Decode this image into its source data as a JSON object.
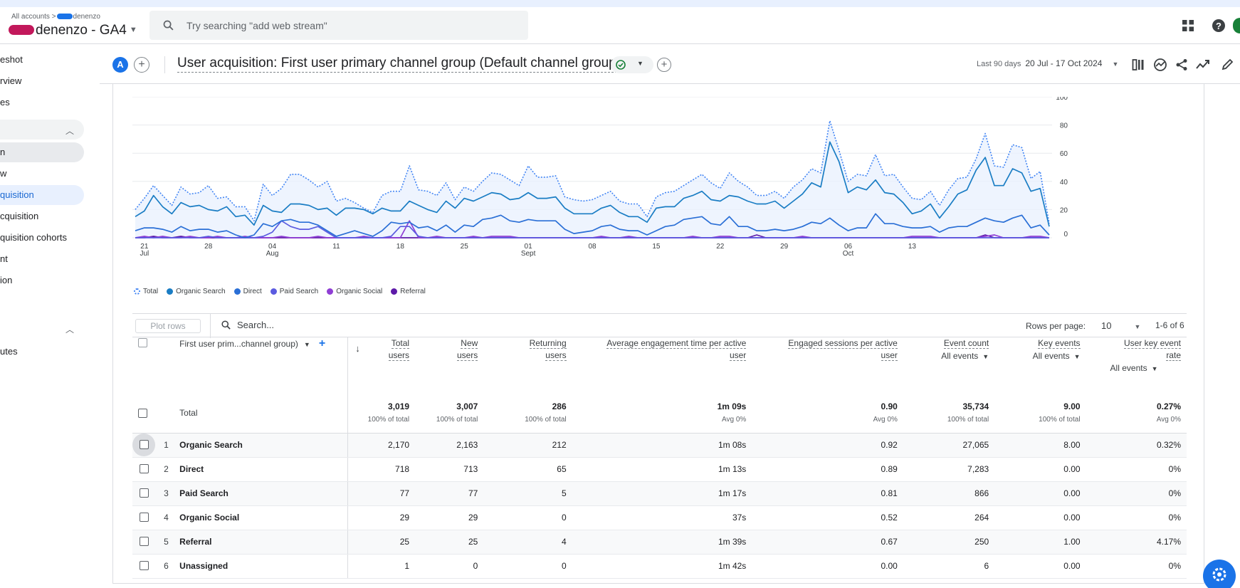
{
  "header": {
    "breadcrumb_prefix": "All accounts",
    "breadcrumb_sep": ">",
    "breadcrumb_account": "denenzo",
    "property_name": "denenzo - GA4",
    "search_placeholder": "Try searching \"add web stream\""
  },
  "sidebar": {
    "items": [
      {
        "label": "eshot"
      },
      {
        "label": "rview"
      },
      {
        "label": "es"
      },
      {
        "label": "n"
      },
      {
        "label": "w"
      },
      {
        "label": "quisition"
      },
      {
        "label": "cquisition"
      },
      {
        "label": "quisition cohorts"
      },
      {
        "label": "nt"
      },
      {
        "label": "ion"
      },
      {
        "label": "utes"
      }
    ]
  },
  "report": {
    "comparison_avatar": "A",
    "title": "User acquisition: First user primary channel group (Default channel group)",
    "date_label": "Last 90 days",
    "date_range": "20 Jul - 17 Oct 2024"
  },
  "chart_data": {
    "type": "line",
    "x_tick_labels": [
      "21",
      "28",
      "04",
      "11",
      "18",
      "25",
      "01",
      "08",
      "15",
      "22",
      "29",
      "06",
      "13"
    ],
    "x_month_labels": [
      {
        "tick": "21",
        "month": "Jul"
      },
      {
        "tick": "04",
        "month": "Aug"
      },
      {
        "tick": "01",
        "month": "Sept"
      },
      {
        "tick": "06",
        "month": "Oct"
      }
    ],
    "y_ticks": [
      0,
      20,
      40,
      60,
      80,
      100
    ],
    "ylim": [
      0,
      100
    ],
    "grid": true,
    "legend_position": "bottom-left",
    "series": [
      {
        "name": "Total",
        "style": "dotted",
        "color": "#4285f4",
        "values": [
          20,
          28,
          37,
          30,
          23,
          36,
          31,
          32,
          37,
          28,
          29,
          22,
          22,
          12,
          38,
          30,
          35,
          45,
          45,
          41,
          36,
          40,
          26,
          28,
          25,
          21,
          18,
          30,
          33,
          33,
          51,
          34,
          33,
          30,
          39,
          27,
          36,
          33,
          40,
          46,
          45,
          41,
          37,
          51,
          43,
          43,
          44,
          29,
          27,
          26,
          27,
          30,
          33,
          26,
          24,
          24,
          15,
          29,
          32,
          33,
          37,
          41,
          45,
          39,
          35,
          46,
          40,
          36,
          30,
          30,
          33,
          28,
          36,
          41,
          49,
          46,
          83,
          62,
          40,
          45,
          44,
          59,
          44,
          45,
          36,
          28,
          27,
          33,
          23,
          34,
          42,
          43,
          56,
          74,
          51,
          50,
          66,
          64,
          42,
          47,
          10
        ]
      },
      {
        "name": "Organic Search",
        "style": "solid",
        "color": "#1a7dc4",
        "values": [
          15,
          19,
          30,
          22,
          17,
          25,
          22,
          23,
          20,
          19,
          22,
          15,
          16,
          9,
          23,
          19,
          18,
          24,
          24,
          23,
          20,
          21,
          16,
          21,
          21,
          20,
          17,
          21,
          19,
          19,
          26,
          23,
          20,
          18,
          26,
          21,
          28,
          26,
          29,
          32,
          31,
          27,
          28,
          32,
          28,
          28,
          29,
          21,
          17,
          17,
          17,
          21,
          23,
          18,
          15,
          15,
          11,
          21,
          22,
          22,
          28,
          30,
          33,
          27,
          26,
          30,
          29,
          26,
          24,
          24,
          26,
          21,
          26,
          31,
          39,
          36,
          68,
          54,
          32,
          36,
          34,
          41,
          32,
          31,
          25,
          17,
          19,
          24,
          14,
          22,
          31,
          34,
          48,
          57,
          37,
          37,
          49,
          46,
          33,
          35,
          8
        ]
      },
      {
        "name": "Direct",
        "style": "solid",
        "color": "#2a6fd6",
        "values": [
          5,
          7,
          7,
          6,
          4,
          8,
          5,
          6,
          6,
          4,
          5,
          2,
          0,
          2,
          10,
          8,
          12,
          13,
          11,
          11,
          9,
          5,
          1,
          3,
          5,
          3,
          1,
          5,
          11,
          10,
          11,
          7,
          8,
          5,
          9,
          4,
          9,
          8,
          13,
          14,
          16,
          12,
          11,
          13,
          12,
          12,
          12,
          6,
          3,
          4,
          5,
          8,
          9,
          6,
          5,
          5,
          2,
          5,
          8,
          9,
          13,
          14,
          15,
          10,
          9,
          15,
          8,
          8,
          5,
          5,
          6,
          5,
          6,
          8,
          11,
          10,
          14,
          9,
          5,
          7,
          7,
          17,
          10,
          10,
          8,
          7,
          7,
          8,
          4,
          7,
          8,
          8,
          11,
          14,
          12,
          11,
          14,
          16,
          7,
          9,
          2
        ]
      },
      {
        "name": "Paid Search",
        "style": "solid",
        "color": "#5b5be0",
        "values": [
          0,
          0,
          0,
          0,
          0,
          0,
          0,
          0,
          1,
          0,
          0,
          0,
          0,
          0,
          1,
          4,
          12,
          8,
          6,
          6,
          8,
          4,
          0,
          0,
          0,
          0,
          0,
          0,
          1,
          8,
          8,
          1,
          0,
          0,
          0,
          0,
          0,
          0,
          0,
          0,
          0,
          0,
          0,
          0,
          0,
          0,
          0,
          0,
          0,
          0,
          0,
          0,
          0,
          0,
          0,
          0,
          0,
          0,
          0,
          0,
          0,
          0,
          0,
          0,
          0,
          0,
          0,
          0,
          0,
          0,
          0,
          0,
          0,
          0,
          0,
          0,
          0,
          0,
          0,
          0,
          0,
          0,
          0,
          0,
          0,
          0,
          0,
          0,
          0,
          0,
          0,
          0,
          0,
          0,
          0,
          0,
          0,
          0,
          0,
          0,
          0
        ]
      },
      {
        "name": "Organic Social",
        "style": "solid",
        "color": "#8f3ed4",
        "values": [
          0,
          1,
          0,
          1,
          0,
          0,
          1,
          0,
          0,
          1,
          0,
          0,
          1,
          0,
          0,
          0,
          1,
          0,
          0,
          0,
          1,
          0,
          0,
          0,
          0,
          1,
          0,
          0,
          0,
          0,
          12,
          0,
          0,
          1,
          0,
          0,
          0,
          1,
          0,
          1,
          1,
          1,
          0,
          0,
          0,
          0,
          0,
          0,
          0,
          0,
          0,
          1,
          0,
          0,
          1,
          0,
          0,
          0,
          0,
          0,
          0,
          1,
          0,
          0,
          1,
          1,
          0,
          0,
          0,
          0,
          0,
          0,
          0,
          1,
          0,
          0,
          0,
          0,
          0,
          0,
          0,
          0,
          0,
          0,
          0,
          1,
          1,
          1,
          0,
          0,
          0,
          0,
          0,
          1,
          2,
          0,
          0,
          0,
          1,
          1,
          0
        ]
      },
      {
        "name": "Referral",
        "style": "solid",
        "color": "#5d1aa8",
        "values": [
          0,
          0,
          1,
          0,
          0,
          1,
          0,
          0,
          0,
          0,
          0,
          0,
          0,
          0,
          0,
          0,
          0,
          0,
          0,
          0,
          0,
          0,
          0,
          0,
          0,
          0,
          0,
          0,
          0,
          0,
          0,
          0,
          0,
          0,
          0,
          0,
          0,
          0,
          0,
          0,
          0,
          0,
          0,
          0,
          0,
          0,
          0,
          0,
          0,
          0,
          0,
          0,
          0,
          0,
          0,
          0,
          0,
          0,
          0,
          0,
          0,
          0,
          0,
          0,
          0,
          0,
          0,
          0,
          2,
          0,
          0,
          0,
          0,
          0,
          0,
          0,
          0,
          0,
          0,
          0,
          0,
          0,
          0,
          0,
          0,
          0,
          0,
          0,
          0,
          0,
          0,
          0,
          0,
          2,
          0,
          0,
          0,
          0,
          0,
          0,
          0
        ]
      }
    ]
  },
  "toolbar": {
    "plot_rows": "Plot rows",
    "search_placeholder": "Search...",
    "rows_per_page_label": "Rows per page:",
    "rows_per_page_value": "10",
    "pagination": "1-6 of 6"
  },
  "table": {
    "dimension_header": "First user prim...channel group)",
    "columns": [
      {
        "l1": "Total",
        "l2": "users"
      },
      {
        "l1": "New",
        "l2": "users"
      },
      {
        "l1": "Returning",
        "l2": "users"
      },
      {
        "l1": "Average engagement time per active",
        "l2": "user"
      },
      {
        "l1": "Engaged sessions per active",
        "l2": "user"
      },
      {
        "l1": "Event count",
        "sub": "All events"
      },
      {
        "l1": "Key events",
        "sub": "All events"
      },
      {
        "l1": "User key event",
        "l2": "rate",
        "sub": "All events"
      }
    ],
    "totals": {
      "label": "Total",
      "values": [
        "3,019",
        "3,007",
        "286",
        "1m 09s",
        "0.90",
        "35,734",
        "9.00",
        "0.27%"
      ],
      "subs": [
        "100% of total",
        "100% of total",
        "100% of total",
        "Avg 0%",
        "Avg 0%",
        "100% of total",
        "100% of total",
        "Avg 0%"
      ]
    },
    "rows": [
      {
        "idx": "1",
        "name": "Organic Search",
        "v": [
          "2,170",
          "2,163",
          "212",
          "1m 08s",
          "0.92",
          "27,065",
          "8.00",
          "0.32%"
        ]
      },
      {
        "idx": "2",
        "name": "Direct",
        "v": [
          "718",
          "713",
          "65",
          "1m 13s",
          "0.89",
          "7,283",
          "0.00",
          "0%"
        ]
      },
      {
        "idx": "3",
        "name": "Paid Search",
        "v": [
          "77",
          "77",
          "5",
          "1m 17s",
          "0.81",
          "866",
          "0.00",
          "0%"
        ]
      },
      {
        "idx": "4",
        "name": "Organic Social",
        "v": [
          "29",
          "29",
          "0",
          "37s",
          "0.52",
          "264",
          "0.00",
          "0%"
        ]
      },
      {
        "idx": "5",
        "name": "Referral",
        "v": [
          "25",
          "25",
          "4",
          "1m 39s",
          "0.67",
          "250",
          "1.00",
          "4.17%"
        ]
      },
      {
        "idx": "6",
        "name": "Unassigned",
        "v": [
          "1",
          "0",
          "0",
          "1m 42s",
          "0.00",
          "6",
          "0.00",
          "0%"
        ]
      }
    ]
  },
  "colors": {
    "brand_blue": "#1a73e8",
    "active_nav_bg": "#e8f0fe",
    "status_green": "#188038"
  }
}
